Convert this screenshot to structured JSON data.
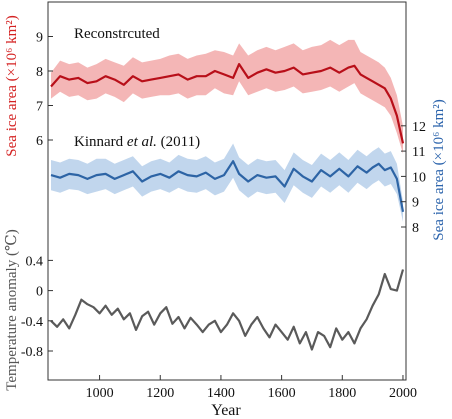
{
  "colors": {
    "red_line": "#b80f19",
    "red_band": "#f2a9a9",
    "blue_line": "#2d64a5",
    "blue_band": "#b6cfea",
    "gray_line": "#5a5a5a",
    "red_axis_label": "#d42222",
    "blue_axis_label": "#2c64ac",
    "gray_axis_label": "#555555"
  },
  "annotations": {
    "reconstructed": "Reconstrcuted",
    "kinnard_prefix": "Kinnard ",
    "kinnard_italic": "et al.",
    "kinnard_suffix": " (2011)"
  },
  "chart_data": {
    "type": "line",
    "xlabel": "Year",
    "x_ticks": [
      1000,
      1200,
      1400,
      1600,
      1800,
      2000
    ],
    "x_tick_labels": [
      "1000",
      "1200",
      "1400",
      "1600",
      "1800",
      "2000"
    ],
    "xlim": [
      830,
      2010
    ],
    "panels": [
      {
        "id": "reconstructed",
        "ylabel": "Sea ice area (×10⁶ km²)",
        "ylabel_side": "left",
        "y_ticks": [
          6,
          7,
          8,
          9
        ],
        "y_tick_labels": [
          "6",
          "7",
          "8",
          "9"
        ],
        "ylim": [
          5.55,
          9.75
        ],
        "series": [
          {
            "style": "line_with_band",
            "x": [
              840,
              870,
              900,
              930,
              960,
              990,
              1020,
              1050,
              1080,
              1110,
              1140,
              1170,
              1200,
              1230,
              1260,
              1290,
              1320,
              1350,
              1380,
              1410,
              1440,
              1460,
              1490,
              1520,
              1550,
              1580,
              1610,
              1640,
              1670,
              1700,
              1730,
              1760,
              1790,
              1820,
              1840,
              1860,
              1880,
              1900,
              1920,
              1940,
              1960,
              1980,
              2000
            ],
            "y": [
              7.55,
              7.85,
              7.75,
              7.8,
              7.65,
              7.7,
              7.85,
              7.75,
              7.6,
              7.85,
              7.7,
              7.75,
              7.8,
              7.85,
              7.9,
              7.75,
              7.85,
              7.85,
              8.0,
              7.9,
              7.8,
              8.2,
              7.8,
              7.95,
              8.05,
              7.95,
              8.0,
              8.1,
              7.9,
              7.95,
              8.0,
              8.1,
              7.95,
              8.1,
              8.15,
              7.9,
              7.8,
              7.7,
              7.6,
              7.5,
              7.2,
              6.7,
              5.9
            ],
            "lower": [
              7.2,
              7.4,
              7.25,
              7.3,
              7.15,
              7.2,
              7.35,
              7.25,
              7.1,
              7.35,
              7.2,
              7.25,
              7.3,
              7.3,
              7.35,
              7.2,
              7.3,
              7.3,
              7.5,
              7.35,
              7.3,
              7.7,
              7.3,
              7.4,
              7.5,
              7.4,
              7.45,
              7.55,
              7.35,
              7.4,
              7.45,
              7.55,
              7.4,
              7.55,
              7.65,
              7.35,
              7.25,
              7.15,
              7.05,
              6.95,
              6.7,
              6.2,
              5.6
            ],
            "upper": [
              7.95,
              8.3,
              8.2,
              8.25,
              8.1,
              8.2,
              8.35,
              8.25,
              8.15,
              8.4,
              8.25,
              8.3,
              8.35,
              8.45,
              8.5,
              8.35,
              8.45,
              8.5,
              8.6,
              8.55,
              8.45,
              8.8,
              8.45,
              8.6,
              8.7,
              8.6,
              8.7,
              8.8,
              8.6,
              8.7,
              8.75,
              8.9,
              8.75,
              8.9,
              8.9,
              8.55,
              8.45,
              8.35,
              8.25,
              8.1,
              7.8,
              7.3,
              6.4
            ]
          }
        ]
      },
      {
        "id": "kinnard",
        "ylabel": "Sea ice area (×10⁶ km²)",
        "ylabel_side": "right",
        "y_ticks": [
          8,
          9,
          10,
          11,
          12
        ],
        "y_tick_labels": [
          "8",
          "9",
          "10",
          "11",
          "12"
        ],
        "ylim": [
          7.52,
          12.4
        ],
        "series": [
          {
            "style": "line_with_band",
            "x": [
              840,
              870,
              900,
              930,
              960,
              990,
              1020,
              1050,
              1080,
              1110,
              1140,
              1170,
              1200,
              1230,
              1260,
              1290,
              1320,
              1350,
              1380,
              1410,
              1440,
              1460,
              1490,
              1520,
              1550,
              1580,
              1610,
              1640,
              1670,
              1700,
              1730,
              1760,
              1790,
              1820,
              1850,
              1880,
              1900,
              1920,
              1940,
              1960,
              1980,
              2000
            ],
            "y": [
              10.05,
              9.95,
              10.1,
              10.05,
              9.9,
              10.05,
              10.1,
              9.9,
              10.05,
              10.2,
              9.8,
              10.0,
              10.1,
              9.95,
              10.2,
              10.05,
              10.0,
              10.15,
              9.9,
              10.05,
              10.6,
              10.1,
              9.8,
              10.05,
              9.95,
              10.0,
              9.6,
              10.3,
              10.0,
              9.8,
              10.25,
              10.0,
              10.3,
              10.0,
              10.4,
              10.15,
              10.35,
              10.5,
              10.25,
              10.35,
              9.9,
              8.6
            ],
            "lower": [
              9.45,
              9.35,
              9.5,
              9.45,
              9.3,
              9.4,
              9.5,
              9.3,
              9.45,
              9.6,
              9.2,
              9.4,
              9.5,
              9.35,
              9.55,
              9.4,
              9.35,
              9.5,
              9.25,
              9.4,
              9.95,
              9.45,
              9.15,
              9.4,
              9.3,
              9.35,
              8.95,
              9.65,
              9.35,
              9.15,
              9.6,
              9.35,
              9.65,
              9.35,
              9.75,
              9.5,
              9.7,
              9.85,
              9.6,
              9.7,
              9.3,
              8.2
            ],
            "upper": [
              10.65,
              10.55,
              10.7,
              10.65,
              10.5,
              10.7,
              10.7,
              10.5,
              10.65,
              10.8,
              10.4,
              10.6,
              10.7,
              10.55,
              10.85,
              10.7,
              10.65,
              10.8,
              10.55,
              10.7,
              11.3,
              10.75,
              10.45,
              10.7,
              10.6,
              10.65,
              10.25,
              10.95,
              10.65,
              10.45,
              10.9,
              10.65,
              10.95,
              10.65,
              11.05,
              10.8,
              11.0,
              11.15,
              10.9,
              11.0,
              10.5,
              9.0
            ]
          }
        ]
      },
      {
        "id": "temperature",
        "ylabel": "Temperature anomaly (℃)",
        "ylabel_side": "left",
        "y_ticks": [
          -0.8,
          -0.4,
          0,
          0.4
        ],
        "y_tick_labels": [
          "-0.8",
          "-0.4",
          "0",
          "0.4"
        ],
        "ylim": [
          -1.12,
          0.55
        ],
        "series": [
          {
            "style": "line",
            "x": [
              840,
              860,
              880,
              900,
              920,
              940,
              960,
              980,
              1000,
              1020,
              1040,
              1060,
              1080,
              1100,
              1120,
              1140,
              1160,
              1180,
              1200,
              1220,
              1240,
              1260,
              1280,
              1300,
              1320,
              1340,
              1360,
              1380,
              1400,
              1420,
              1440,
              1460,
              1480,
              1500,
              1520,
              1540,
              1560,
              1580,
              1600,
              1620,
              1640,
              1660,
              1680,
              1700,
              1720,
              1740,
              1760,
              1780,
              1800,
              1820,
              1840,
              1860,
              1880,
              1900,
              1920,
              1940,
              1960,
              1980,
              2000
            ],
            "y": [
              -0.4,
              -0.48,
              -0.38,
              -0.5,
              -0.32,
              -0.12,
              -0.18,
              -0.22,
              -0.3,
              -0.2,
              -0.32,
              -0.24,
              -0.38,
              -0.3,
              -0.52,
              -0.34,
              -0.28,
              -0.45,
              -0.3,
              -0.22,
              -0.44,
              -0.35,
              -0.5,
              -0.36,
              -0.45,
              -0.55,
              -0.45,
              -0.4,
              -0.55,
              -0.45,
              -0.3,
              -0.4,
              -0.6,
              -0.45,
              -0.35,
              -0.5,
              -0.62,
              -0.45,
              -0.55,
              -0.65,
              -0.48,
              -0.7,
              -0.55,
              -0.78,
              -0.55,
              -0.6,
              -0.75,
              -0.5,
              -0.65,
              -0.55,
              -0.7,
              -0.5,
              -0.38,
              -0.2,
              -0.05,
              0.22,
              0.02,
              0.0,
              0.28
            ]
          }
        ]
      }
    ]
  }
}
